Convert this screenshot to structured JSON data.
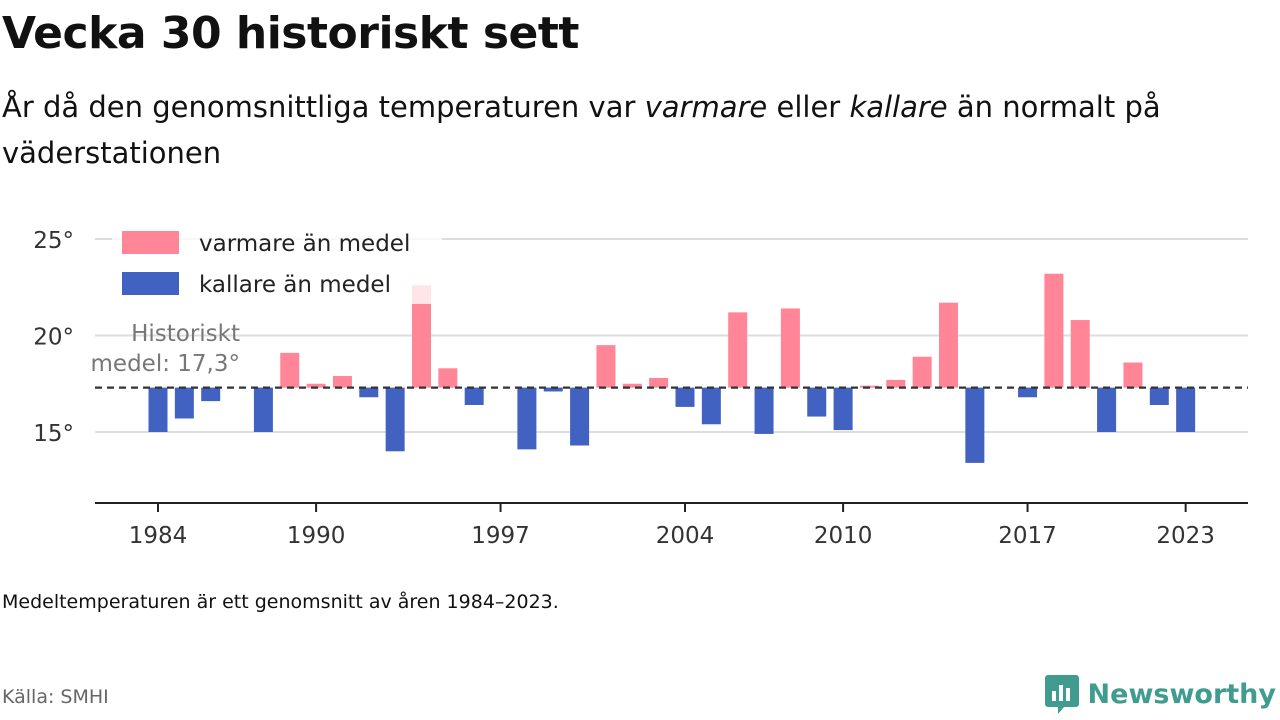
{
  "header": {
    "title": "Vecka 30 historiskt sett",
    "subtitle_parts": [
      "År då den genomsnittliga temperaturen var ",
      "varmare",
      " eller ",
      "kallare",
      " än normalt på väderstationen"
    ]
  },
  "chart_data": {
    "type": "bar",
    "baseline": 17.3,
    "baseline_label_line1": "Historiskt",
    "baseline_label_line2": "medel: 17,3°",
    "ylim": [
      11.4,
      25.8
    ],
    "yticks": [
      {
        "value": 15,
        "label": "15°"
      },
      {
        "value": 20,
        "label": "20°"
      },
      {
        "value": 25,
        "label": "25°"
      }
    ],
    "xticks": [
      {
        "value": 1984,
        "label": "1984"
      },
      {
        "value": 1990,
        "label": "1990"
      },
      {
        "value": 1997,
        "label": "1997"
      },
      {
        "value": 2004,
        "label": "2004"
      },
      {
        "value": 2010,
        "label": "2010"
      },
      {
        "value": 2017,
        "label": "2017"
      },
      {
        "value": 2023,
        "label": "2023"
      }
    ],
    "legend": [
      {
        "key": "warm",
        "label": "varmare än medel",
        "color": "#ff8597"
      },
      {
        "key": "cold",
        "label": "kallare än medel",
        "color": "#4262c2"
      }
    ],
    "legend_position": "top-left",
    "grid": true,
    "years": [
      1984,
      1985,
      1986,
      1987,
      1988,
      1989,
      1990,
      1991,
      1992,
      1993,
      1994,
      1995,
      1996,
      1997,
      1998,
      1999,
      2000,
      2001,
      2002,
      2003,
      2004,
      2005,
      2006,
      2007,
      2008,
      2009,
      2010,
      2011,
      2012,
      2013,
      2014,
      2015,
      2016,
      2017,
      2018,
      2019,
      2020,
      2021,
      2022,
      2023
    ],
    "values": [
      15.0,
      15.7,
      16.6,
      null,
      15.0,
      19.1,
      17.5,
      17.9,
      16.8,
      14.0,
      22.6,
      18.3,
      16.4,
      null,
      14.1,
      17.1,
      14.3,
      19.5,
      17.5,
      17.8,
      16.3,
      15.4,
      21.2,
      14.9,
      21.4,
      15.8,
      15.1,
      17.4,
      17.7,
      18.9,
      21.7,
      13.4,
      null,
      16.8,
      23.2,
      20.8,
      15.0,
      18.6,
      16.4,
      15.0
    ]
  },
  "footer": {
    "note": "Medeltemperaturen är ett genomsnitt av åren 1984–2023.",
    "source": "Källa: SMHI",
    "brand": "Newsworthy"
  }
}
